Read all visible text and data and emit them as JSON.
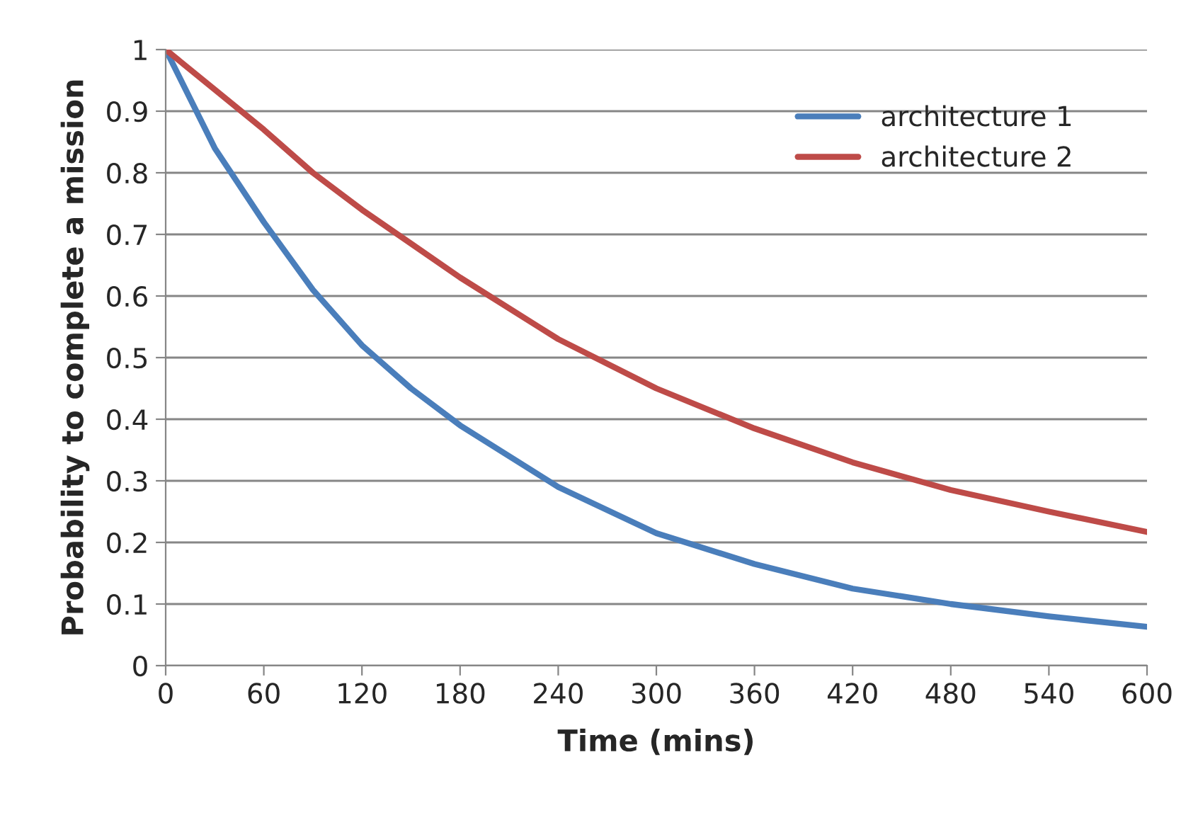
{
  "chart_data": {
    "type": "line",
    "xlabel": "Time (mins)",
    "ylabel": "Probability to complete a mission",
    "x": [
      0,
      30,
      60,
      90,
      120,
      150,
      180,
      240,
      300,
      360,
      420,
      480,
      540,
      600
    ],
    "series": [
      {
        "name": "architecture 1",
        "color": "#4a7ebb",
        "values": [
          1,
          0.84,
          0.72,
          0.61,
          0.52,
          0.45,
          0.39,
          0.29,
          0.215,
          0.165,
          0.125,
          0.1,
          0.08,
          0.063
        ]
      },
      {
        "name": "architecture 2",
        "color": "#be4b48",
        "values": [
          1,
          0.935,
          0.87,
          0.8,
          0.74,
          0.685,
          0.63,
          0.53,
          0.45,
          0.385,
          0.33,
          0.285,
          0.25,
          0.217
        ]
      }
    ],
    "xlim": [
      0,
      600
    ],
    "xticks": [
      0,
      60,
      120,
      180,
      240,
      300,
      360,
      420,
      480,
      540,
      600
    ],
    "ylim": [
      0,
      1
    ],
    "yticks": [
      0,
      0.1,
      0.2,
      0.3,
      0.4,
      0.5,
      0.6,
      0.7,
      0.8,
      0.9,
      1
    ],
    "grid": "y",
    "legend": "top right",
    "marker": "none",
    "line_style": "solid"
  }
}
